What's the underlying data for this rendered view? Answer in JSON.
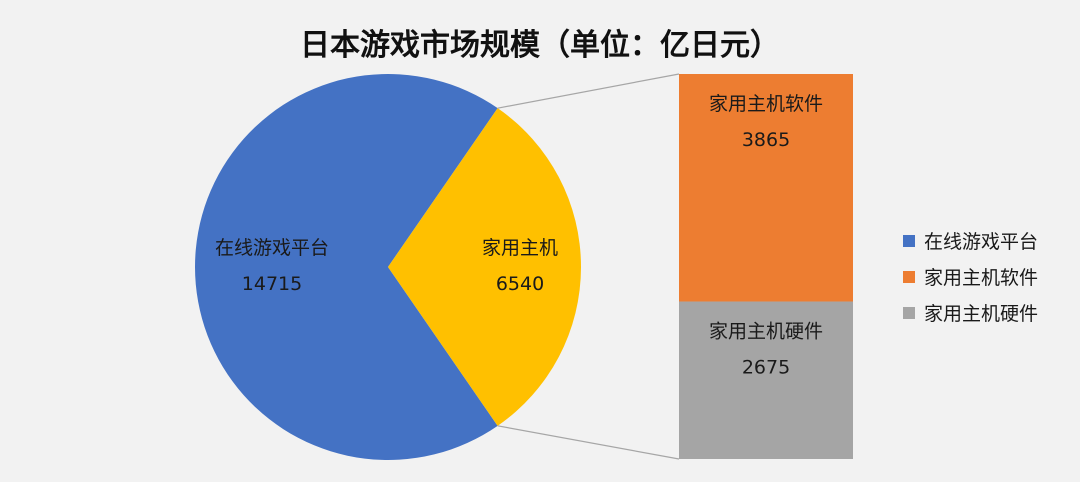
{
  "chart_data": {
    "type": "pie",
    "title": "日本游戏市场规模（单位：亿日元）",
    "unit": "亿日元",
    "pie": {
      "slices": [
        {
          "name": "在线游戏平台",
          "value": 14715,
          "color": "#4472c4"
        },
        {
          "name": "家用主机",
          "value": 6540,
          "color": "#ffc000"
        }
      ]
    },
    "breakdown": {
      "of": "家用主机",
      "segments": [
        {
          "name": "家用主机软件",
          "value": 3865,
          "color": "#ed7d31"
        },
        {
          "name": "家用主机硬件",
          "value": 2675,
          "color": "#a5a5a5"
        }
      ]
    },
    "legend": {
      "position": "right",
      "entries": [
        {
          "name": "在线游戏平台",
          "color": "#4472c4"
        },
        {
          "name": "家用主机软件",
          "color": "#ed7d31"
        },
        {
          "name": "家用主机硬件",
          "color": "#a5a5a5"
        }
      ]
    }
  }
}
